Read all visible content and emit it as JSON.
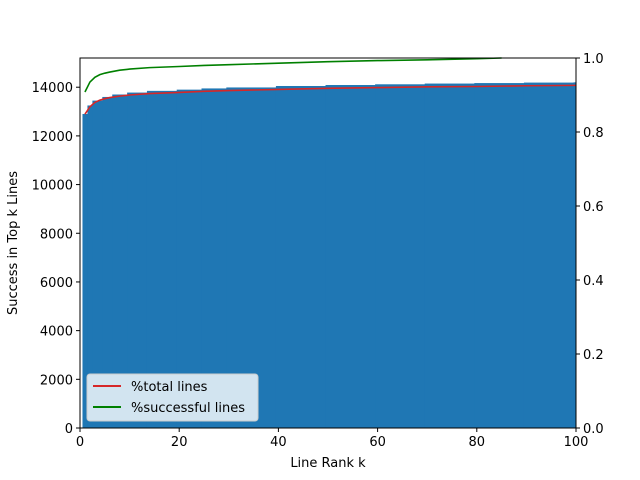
{
  "chart_data": {
    "type": "bar",
    "xlabel": "Line Rank k",
    "ylabel": "Success in Top k Lines",
    "xlim": [
      0,
      100
    ],
    "ylim": [
      0,
      15200
    ],
    "y2lim": [
      0,
      1.0
    ],
    "x_ticks": [
      0,
      20,
      40,
      60,
      80,
      100
    ],
    "y_ticks": [
      0,
      2000,
      4000,
      6000,
      8000,
      10000,
      12000,
      14000
    ],
    "y2_ticks": [
      0.0,
      0.2,
      0.4,
      0.6,
      0.8,
      1.0
    ],
    "x_tick_labels": [
      "0",
      "20",
      "40",
      "60",
      "80",
      "100"
    ],
    "y_tick_labels": [
      "0",
      "2000",
      "4000",
      "6000",
      "8000",
      "10000",
      "12000",
      "14000"
    ],
    "y2_tick_labels": [
      "0.0",
      "0.2",
      "0.4",
      "0.6",
      "0.8",
      "1.0"
    ],
    "grid": false,
    "legend_position": "lower-left",
    "bars": {
      "color": "#1f77b4",
      "x": [
        1,
        2,
        3,
        5,
        7,
        10,
        14,
        20,
        25,
        30,
        40,
        50,
        60,
        70,
        80,
        90,
        100
      ],
      "values": [
        12900,
        13250,
        13450,
        13600,
        13700,
        13780,
        13850,
        13900,
        13950,
        13990,
        14050,
        14090,
        14120,
        14150,
        14170,
        14190,
        14200
      ]
    },
    "series": [
      {
        "name": "%total lines",
        "color": "#d62728",
        "axis": "right",
        "x": [
          1,
          2,
          3,
          4,
          5,
          6,
          8,
          10,
          14,
          20,
          25,
          30,
          40,
          50,
          60,
          70,
          80,
          90,
          100
        ],
        "values": [
          0.848,
          0.868,
          0.88,
          0.886,
          0.89,
          0.893,
          0.897,
          0.9,
          0.904,
          0.907,
          0.91,
          0.912,
          0.915,
          0.918,
          0.92,
          0.922,
          0.923,
          0.925,
          0.926
        ]
      },
      {
        "name": "%successful lines",
        "color": "#008000",
        "axis": "right",
        "x": [
          1,
          2,
          3,
          4,
          5,
          6,
          8,
          10,
          14,
          20,
          25,
          30,
          40,
          50,
          60,
          70,
          80,
          85
        ],
        "values": [
          0.908,
          0.935,
          0.948,
          0.955,
          0.959,
          0.962,
          0.967,
          0.97,
          0.974,
          0.977,
          0.98,
          0.982,
          0.986,
          0.99,
          0.993,
          0.995,
          0.998,
          1.0
        ]
      }
    ]
  }
}
